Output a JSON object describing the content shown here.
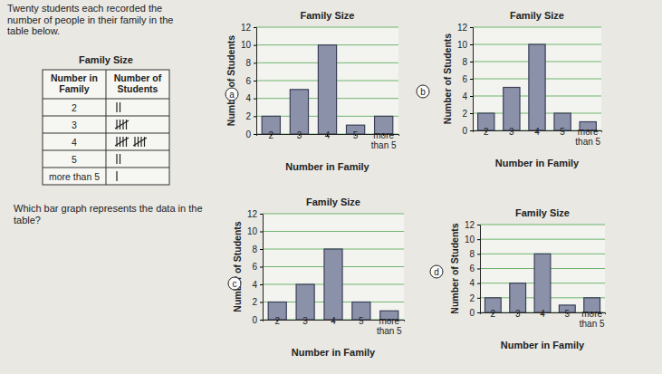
{
  "intro": "Twenty students each recorded the number of people in their family in the table below.",
  "question": "Which bar graph represents the data in the table?",
  "table": {
    "title": "Family Size",
    "header": [
      "Number in Family",
      "Number of Students"
    ],
    "rows": [
      [
        "2",
        2
      ],
      [
        "3",
        5
      ],
      [
        "4",
        10
      ],
      [
        "5",
        2
      ],
      [
        "more than 5",
        1
      ]
    ]
  },
  "chart_data": [
    {
      "type": "bar",
      "option": "a",
      "title": "Family Size",
      "x_label": "Number in Family",
      "y_label": "Number of Students",
      "categories": [
        "2",
        "3",
        "4",
        "5",
        "more than 5"
      ],
      "values": [
        2,
        5,
        10,
        1,
        2
      ],
      "color": "#8a91a8",
      "ylim": [
        0,
        12
      ],
      "yticks": [
        0,
        2,
        4,
        6,
        8,
        10,
        12
      ],
      "grid": true
    },
    {
      "type": "bar",
      "option": "b",
      "title": "Family Size",
      "x_label": "Number in Family",
      "y_label": "Number of Students",
      "categories": [
        "2",
        "3",
        "4",
        "5",
        "more than 5"
      ],
      "values": [
        2,
        5,
        10,
        2,
        1
      ],
      "color": "#8a91a8",
      "ylim": [
        0,
        12
      ],
      "yticks": [
        0,
        2,
        4,
        6,
        8,
        10,
        12
      ],
      "grid": true
    },
    {
      "type": "bar",
      "option": "c",
      "title": "Family Size",
      "x_label": "Number in Family",
      "y_label": "Number of Students",
      "categories": [
        "2",
        "3",
        "4",
        "5",
        "more than 5"
      ],
      "values": [
        2,
        4,
        8,
        2,
        1
      ],
      "color": "#8a91a8",
      "ylim": [
        0,
        12
      ],
      "yticks": [
        0,
        2,
        4,
        6,
        8,
        10,
        12
      ],
      "grid": true
    },
    {
      "type": "bar",
      "option": "d",
      "title": "Family Size",
      "x_label": "Number in Family",
      "y_label": "Number of Students",
      "categories": [
        "2",
        "3",
        "4",
        "5",
        "more than 5"
      ],
      "values": [
        2,
        4,
        8,
        1,
        2
      ],
      "color": "#8a91a8",
      "ylim": [
        0,
        12
      ],
      "yticks": [
        0,
        2,
        4,
        6,
        8,
        10,
        12
      ],
      "grid": true
    }
  ]
}
